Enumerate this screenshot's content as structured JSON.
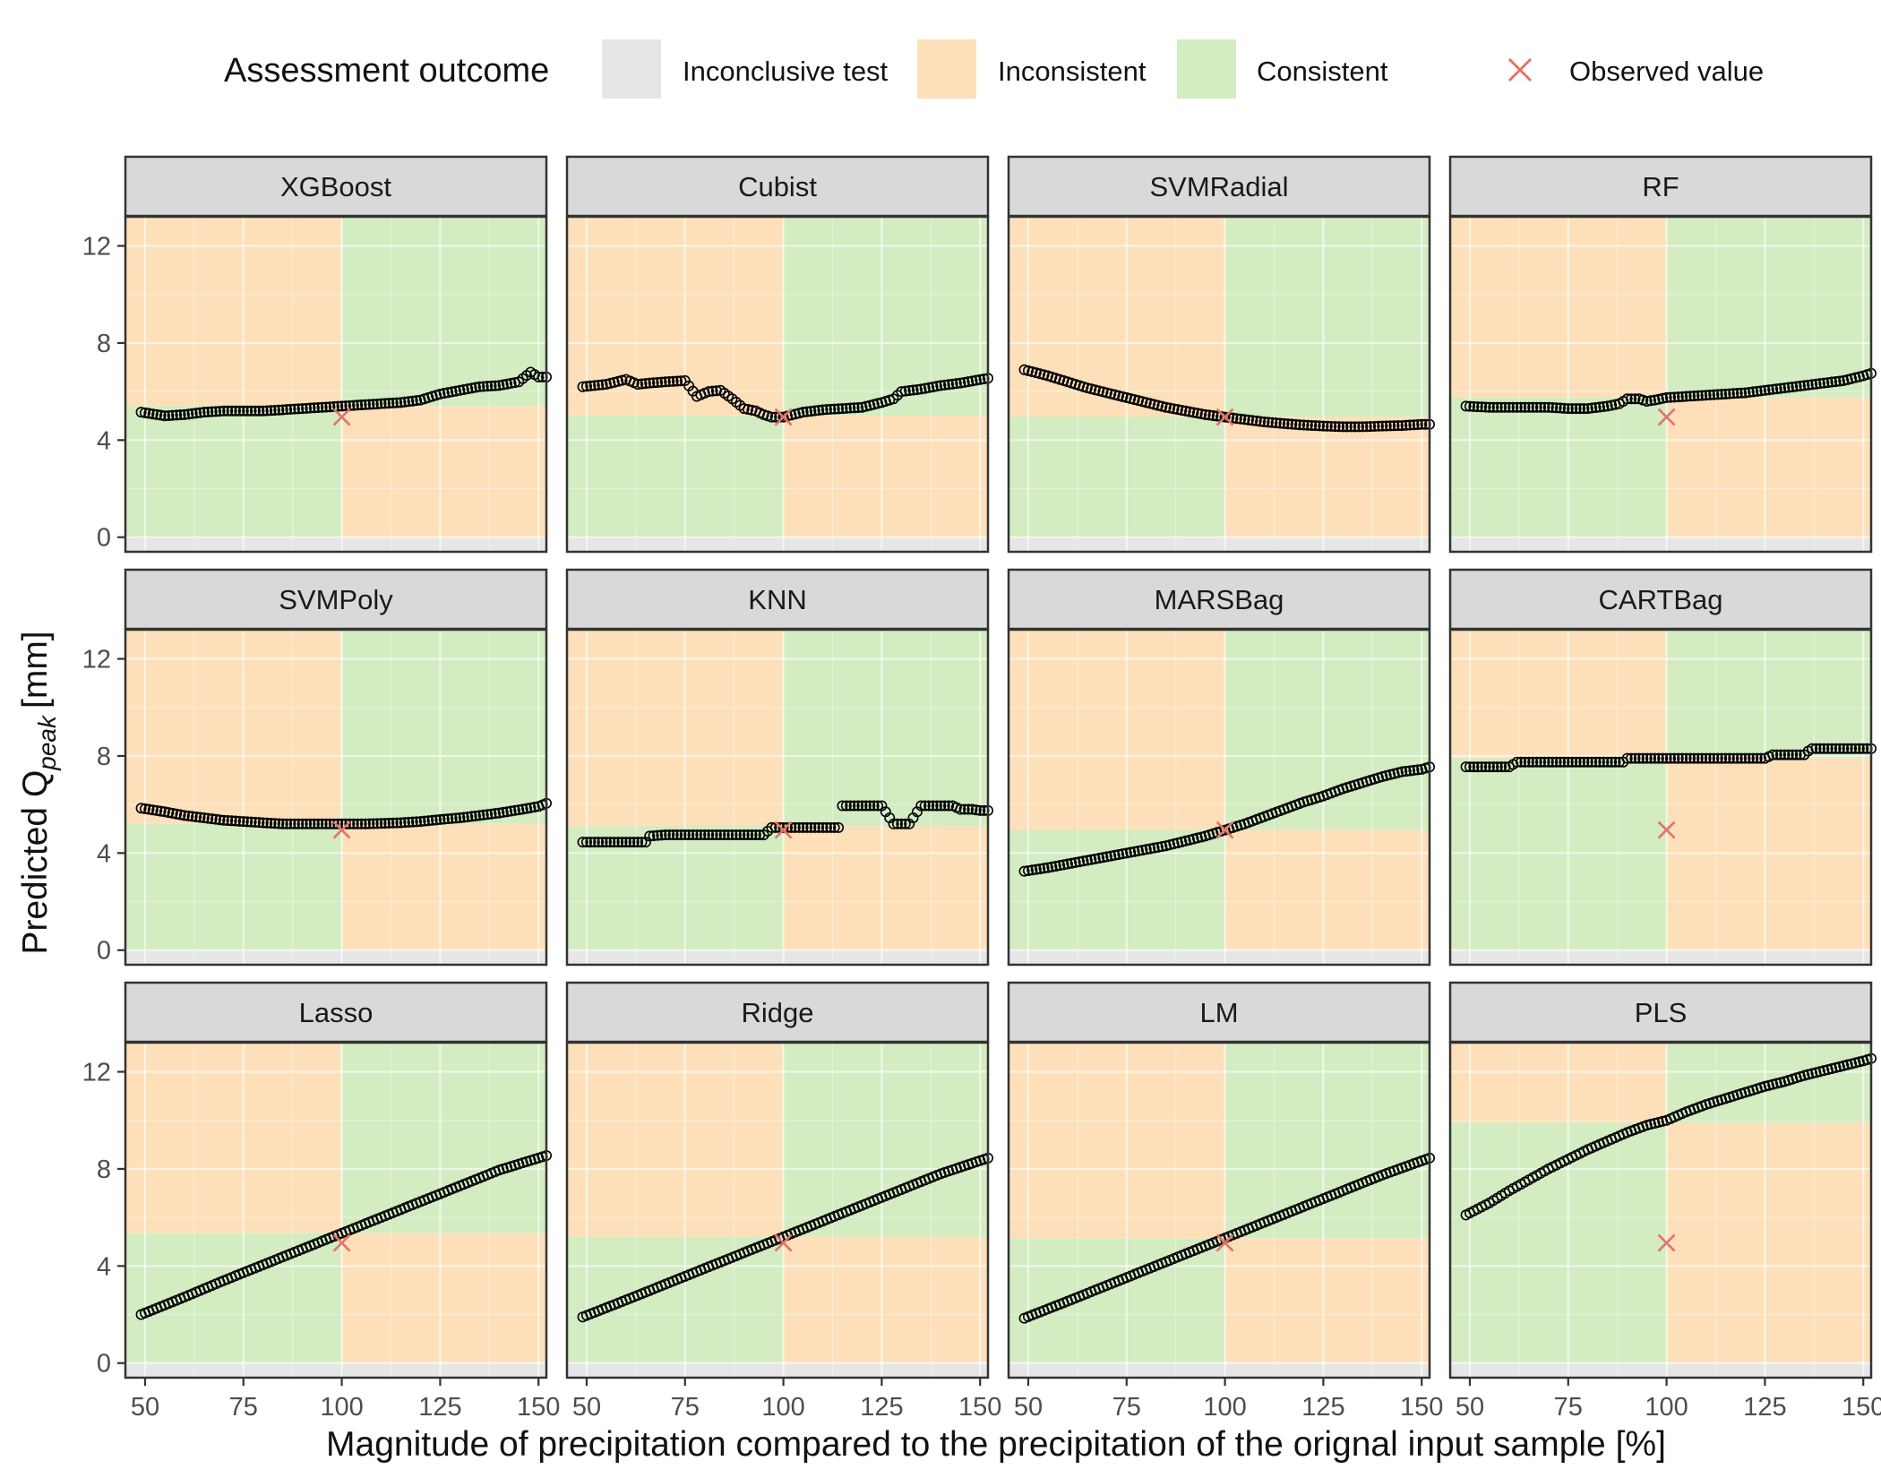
{
  "legend": {
    "title": "Assessment outcome",
    "items": [
      {
        "label": "Inconclusive test",
        "color": "#e6e6e6"
      },
      {
        "label": "Inconsistent",
        "color": "#fde0ba"
      },
      {
        "label": "Consistent",
        "color": "#d3ecc2"
      }
    ],
    "observed_label": "Observed value",
    "observed_color": "#e4726b"
  },
  "chart_data": {
    "type": "scatter",
    "title": "",
    "xlabel": "Magnitude of precipitation compared to the precipitation of the orignal input sample [%]",
    "ylabel_main": "Predicted Q",
    "ylabel_sub": "peak",
    "ylabel_unit": "[mm]",
    "xlim": [
      45,
      152
    ],
    "ylim": [
      -0.6,
      13.2
    ],
    "x_ticks": [
      50,
      75,
      100,
      125,
      150
    ],
    "y_ticks": [
      0,
      4,
      8,
      12
    ],
    "x_tick_labels": [
      "50",
      "75",
      "100",
      "125",
      "150"
    ],
    "y_tick_labels": [
      "0",
      "4",
      "8",
      "12"
    ],
    "observed": {
      "x": 100,
      "y": 4.95
    },
    "inconclusive_band": [
      -0.6,
      0
    ],
    "series": [
      {
        "name": "XGBoost",
        "threshold": 5.4,
        "x": [
          49,
          55,
          60,
          65,
          70,
          75,
          80,
          85,
          90,
          95,
          100,
          105,
          110,
          115,
          120,
          125,
          130,
          135,
          140,
          145,
          148,
          150,
          152
        ],
        "y": [
          5.15,
          5.0,
          5.05,
          5.15,
          5.2,
          5.2,
          5.2,
          5.25,
          5.3,
          5.35,
          5.4,
          5.45,
          5.5,
          5.55,
          5.65,
          5.9,
          6.05,
          6.2,
          6.25,
          6.4,
          6.8,
          6.6,
          6.6
        ]
      },
      {
        "name": "Cubist",
        "threshold": 5.0,
        "x": [
          49,
          55,
          60,
          63,
          66,
          70,
          75,
          78,
          81,
          84,
          87,
          90,
          93,
          95,
          97,
          100,
          105,
          110,
          115,
          120,
          125,
          128,
          130,
          135,
          140,
          145,
          152
        ],
        "y": [
          6.2,
          6.3,
          6.5,
          6.3,
          6.35,
          6.4,
          6.45,
          5.8,
          6.0,
          6.05,
          5.7,
          5.3,
          5.2,
          5.05,
          4.95,
          4.95,
          5.15,
          5.25,
          5.3,
          5.35,
          5.55,
          5.7,
          6.0,
          6.1,
          6.25,
          6.35,
          6.55
        ]
      },
      {
        "name": "SVMRadial",
        "threshold": 4.95,
        "x": [
          49,
          55,
          60,
          65,
          70,
          75,
          80,
          85,
          90,
          95,
          100,
          105,
          110,
          115,
          120,
          125,
          130,
          135,
          140,
          145,
          150,
          152
        ],
        "y": [
          6.9,
          6.65,
          6.4,
          6.15,
          5.95,
          5.75,
          5.55,
          5.35,
          5.2,
          5.05,
          4.95,
          4.85,
          4.75,
          4.68,
          4.62,
          4.58,
          4.55,
          4.55,
          4.58,
          4.6,
          4.65,
          4.65
        ]
      },
      {
        "name": "RF",
        "threshold": 5.75,
        "x": [
          49,
          55,
          60,
          65,
          70,
          75,
          80,
          85,
          88,
          90,
          93,
          95,
          97,
          100,
          105,
          110,
          115,
          120,
          125,
          130,
          135,
          140,
          145,
          150,
          152
        ],
        "y": [
          5.4,
          5.35,
          5.35,
          5.35,
          5.35,
          5.3,
          5.3,
          5.4,
          5.5,
          5.7,
          5.7,
          5.6,
          5.65,
          5.75,
          5.8,
          5.85,
          5.9,
          5.95,
          6.05,
          6.15,
          6.25,
          6.35,
          6.45,
          6.65,
          6.75
        ]
      },
      {
        "name": "SVMPoly",
        "threshold": 5.2,
        "x": [
          49,
          55,
          60,
          65,
          70,
          75,
          80,
          85,
          90,
          95,
          100,
          105,
          110,
          115,
          120,
          125,
          130,
          135,
          140,
          145,
          150,
          152
        ],
        "y": [
          5.85,
          5.7,
          5.55,
          5.45,
          5.35,
          5.3,
          5.25,
          5.2,
          5.2,
          5.2,
          5.2,
          5.2,
          5.22,
          5.25,
          5.3,
          5.38,
          5.45,
          5.55,
          5.65,
          5.78,
          5.92,
          6.05
        ]
      },
      {
        "name": "KNN",
        "threshold": 5.1,
        "x": [
          49,
          55,
          60,
          65,
          66,
          70,
          75,
          80,
          85,
          90,
          95,
          97,
          100,
          105,
          110,
          114,
          115,
          118,
          120,
          123,
          125,
          128,
          130,
          132,
          135,
          138,
          140,
          143,
          145,
          148,
          150,
          152
        ],
        "y": [
          4.45,
          4.45,
          4.45,
          4.45,
          4.7,
          4.75,
          4.75,
          4.75,
          4.75,
          4.75,
          4.75,
          5.05,
          5.05,
          5.05,
          5.05,
          5.05,
          5.95,
          5.95,
          5.95,
          5.95,
          5.95,
          5.2,
          5.2,
          5.2,
          5.95,
          5.95,
          5.95,
          5.95,
          5.8,
          5.8,
          5.75,
          5.75
        ]
      },
      {
        "name": "MARSBag",
        "threshold": 4.95,
        "x": [
          49,
          55,
          60,
          65,
          70,
          75,
          80,
          85,
          90,
          95,
          100,
          105,
          110,
          115,
          120,
          125,
          130,
          135,
          140,
          145,
          150,
          152
        ],
        "y": [
          3.25,
          3.4,
          3.55,
          3.7,
          3.85,
          4.0,
          4.15,
          4.3,
          4.5,
          4.7,
          4.95,
          5.2,
          5.5,
          5.8,
          6.1,
          6.35,
          6.65,
          6.9,
          7.15,
          7.35,
          7.45,
          7.55
        ]
      },
      {
        "name": "CARTBag",
        "threshold": 7.9,
        "x": [
          49,
          55,
          60,
          62,
          65,
          70,
          75,
          80,
          85,
          89,
          90,
          95,
          100,
          105,
          110,
          115,
          120,
          125,
          127,
          130,
          135,
          136,
          137,
          140,
          145,
          150,
          152
        ],
        "y": [
          7.55,
          7.55,
          7.55,
          7.75,
          7.75,
          7.75,
          7.75,
          7.75,
          7.75,
          7.75,
          7.9,
          7.9,
          7.9,
          7.9,
          7.9,
          7.9,
          7.9,
          7.9,
          8.05,
          8.05,
          8.05,
          8.2,
          8.3,
          8.3,
          8.3,
          8.3,
          8.3
        ]
      },
      {
        "name": "Lasso",
        "threshold": 5.35,
        "x": [
          49,
          60,
          70,
          80,
          90,
          100,
          110,
          120,
          130,
          140,
          152
        ],
        "y": [
          2.0,
          2.72,
          3.4,
          4.05,
          4.7,
          5.35,
          6.0,
          6.65,
          7.3,
          7.95,
          8.55
        ]
      },
      {
        "name": "Ridge",
        "threshold": 5.2,
        "x": [
          49,
          60,
          70,
          80,
          90,
          100,
          110,
          120,
          130,
          140,
          152
        ],
        "y": [
          1.9,
          2.6,
          3.25,
          3.9,
          4.55,
          5.2,
          5.85,
          6.5,
          7.15,
          7.8,
          8.45
        ]
      },
      {
        "name": "LM",
        "threshold": 5.15,
        "x": [
          49,
          60,
          70,
          80,
          90,
          100,
          110,
          120,
          130,
          140,
          152
        ],
        "y": [
          1.85,
          2.55,
          3.2,
          3.85,
          4.5,
          5.15,
          5.8,
          6.45,
          7.1,
          7.75,
          8.45
        ]
      },
      {
        "name": "PLS",
        "threshold": 9.9,
        "x": [
          49,
          55,
          60,
          65,
          70,
          75,
          80,
          85,
          90,
          95,
          100,
          105,
          110,
          115,
          120,
          125,
          130,
          135,
          140,
          145,
          150,
          152
        ],
        "y": [
          6.1,
          6.6,
          7.1,
          7.55,
          8.0,
          8.4,
          8.8,
          9.15,
          9.5,
          9.8,
          10.0,
          10.35,
          10.65,
          10.9,
          11.15,
          11.4,
          11.6,
          11.85,
          12.05,
          12.25,
          12.45,
          12.55
        ]
      }
    ]
  }
}
